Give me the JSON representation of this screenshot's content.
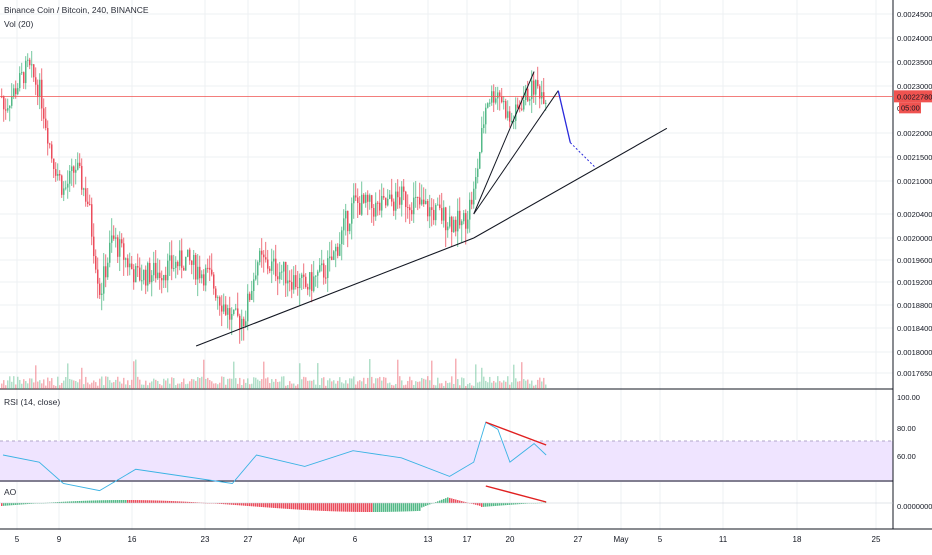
{
  "header": {
    "symbol_line": "Binance Coin / Bitcoin, 240, BINANCE",
    "volume_label": "Vol (20)",
    "rsi_label": "RSI (14, close)",
    "ao_label": "AO"
  },
  "colors": {
    "up": "#53b987",
    "down": "#eb4d5c",
    "price_line": "#ef5350",
    "rsi_line": "#3bb3e4",
    "rsi_band": "#efe4ff",
    "trend_line": "#131722",
    "projection": "#2a2adb",
    "divergence": "#e02020"
  },
  "price_axis": {
    "ticks": [
      "0.0024500",
      "0.0024000",
      "0.0023500",
      "0.0023000",
      "0.0022000",
      "0.0021500",
      "0.0021000",
      "0.0020400",
      "0.0020000",
      "0.0019600",
      "0.0019200",
      "0.0018800",
      "0.0018400",
      "0.0018000",
      "0.0017650"
    ],
    "last_price": "0.0022780",
    "countdown": "05:00",
    "hidden_tick": "0.00"
  },
  "rsi_axis": {
    "ticks": [
      "100.00",
      "80.00",
      "60.00"
    ]
  },
  "ao_axis": {
    "ticks": [
      "0.0000000"
    ]
  },
  "time_axis": {
    "labels": [
      "5",
      "9",
      "16",
      "23",
      "27",
      "Apr",
      "6",
      "13",
      "17",
      "20",
      "27",
      "May",
      "5",
      "11",
      "18",
      "25"
    ]
  },
  "chart_data": {
    "type": "candlestick",
    "title": "Binance Coin / Bitcoin, 240, BINANCE",
    "interval": "240",
    "x_range": [
      "2019-03-05",
      "2019-05-25"
    ],
    "y_range": [
      0.00174,
      0.00248
    ],
    "last_price": 0.002278,
    "price_path": [
      {
        "date": "2019-03-05",
        "price": 0.00225
      },
      {
        "date": "2019-03-07",
        "price": 0.00234
      },
      {
        "date": "2019-03-08",
        "price": 0.00229
      },
      {
        "date": "2019-03-09",
        "price": 0.00215
      },
      {
        "date": "2019-03-10",
        "price": 0.00208
      },
      {
        "date": "2019-03-11",
        "price": 0.00213
      },
      {
        "date": "2019-03-12",
        "price": 0.00206
      },
      {
        "date": "2019-03-13",
        "price": 0.0019
      },
      {
        "date": "2019-03-14",
        "price": 0.002
      },
      {
        "date": "2019-03-16",
        "price": 0.00193
      },
      {
        "date": "2019-03-18",
        "price": 0.00194
      },
      {
        "date": "2019-03-20",
        "price": 0.00196
      },
      {
        "date": "2019-03-22",
        "price": 0.00193
      },
      {
        "date": "2019-03-24",
        "price": 0.00185
      },
      {
        "date": "2019-03-25",
        "price": 0.00186
      },
      {
        "date": "2019-03-26",
        "price": 0.00196
      },
      {
        "date": "2019-03-28",
        "price": 0.00194
      },
      {
        "date": "2019-03-30",
        "price": 0.00191
      },
      {
        "date": "2019-04-01",
        "price": 0.00195
      },
      {
        "date": "2019-04-03",
        "price": 0.00206
      },
      {
        "date": "2019-04-05",
        "price": 0.00205
      },
      {
        "date": "2019-04-07",
        "price": 0.00207
      },
      {
        "date": "2019-04-09",
        "price": 0.00205
      },
      {
        "date": "2019-04-11",
        "price": 0.00203
      },
      {
        "date": "2019-04-12",
        "price": 0.00202
      },
      {
        "date": "2019-04-13",
        "price": 0.00208
      },
      {
        "date": "2019-04-14",
        "price": 0.00227
      },
      {
        "date": "2019-04-15",
        "price": 0.00229
      },
      {
        "date": "2019-04-16",
        "price": 0.00222
      },
      {
        "date": "2019-04-17",
        "price": 0.00227
      },
      {
        "date": "2019-04-18",
        "price": 0.0023
      },
      {
        "date": "2019-04-19",
        "price": 0.002278
      }
    ],
    "annotations": {
      "trend_support": [
        {
          "date": "2019-03-21",
          "price": 0.00181
        },
        {
          "date": "2019-04-13",
          "price": 0.002
        },
        {
          "date": "2019-04-29",
          "price": 0.00221
        }
      ],
      "wedge_upper": [
        {
          "date": "2019-04-13",
          "price": 0.00204
        },
        {
          "date": "2019-04-18",
          "price": 0.00233
        }
      ],
      "wedge_lower": [
        {
          "date": "2019-04-13",
          "price": 0.00204
        },
        {
          "date": "2019-04-20",
          "price": 0.00229
        }
      ],
      "projection": [
        {
          "date": "2019-04-20",
          "price": 0.00229
        },
        {
          "date": "2019-04-21",
          "price": 0.00218
        },
        {
          "date": "2019-04-23",
          "price": 0.00213
        }
      ]
    },
    "rsi": {
      "label": "RSI (14, close)",
      "upper": 70,
      "lower": 30,
      "ticks": [
        100,
        80,
        60
      ],
      "series": [
        {
          "date": "2019-03-05",
          "value": 60
        },
        {
          "date": "2019-03-08",
          "value": 55
        },
        {
          "date": "2019-03-10",
          "value": 40
        },
        {
          "date": "2019-03-13",
          "value": 35
        },
        {
          "date": "2019-03-16",
          "value": 50
        },
        {
          "date": "2019-03-20",
          "value": 45
        },
        {
          "date": "2019-03-24",
          "value": 40
        },
        {
          "date": "2019-03-26",
          "value": 60
        },
        {
          "date": "2019-03-30",
          "value": 52
        },
        {
          "date": "2019-04-03",
          "value": 63
        },
        {
          "date": "2019-04-07",
          "value": 58
        },
        {
          "date": "2019-04-11",
          "value": 45
        },
        {
          "date": "2019-04-13",
          "value": 55
        },
        {
          "date": "2019-04-14",
          "value": 83
        },
        {
          "date": "2019-04-15",
          "value": 78
        },
        {
          "date": "2019-04-16",
          "value": 55
        },
        {
          "date": "2019-04-18",
          "value": 68
        },
        {
          "date": "2019-04-19",
          "value": 60
        }
      ],
      "divergence": [
        {
          "date": "2019-04-14",
          "value": 83
        },
        {
          "date": "2019-04-19",
          "value": 67
        }
      ]
    },
    "ao": {
      "label": "AO",
      "zero_line": 0,
      "divergence": [
        {
          "date": "2019-04-14",
          "value": "peak"
        },
        {
          "date": "2019-04-19",
          "value": "lower"
        }
      ]
    }
  }
}
